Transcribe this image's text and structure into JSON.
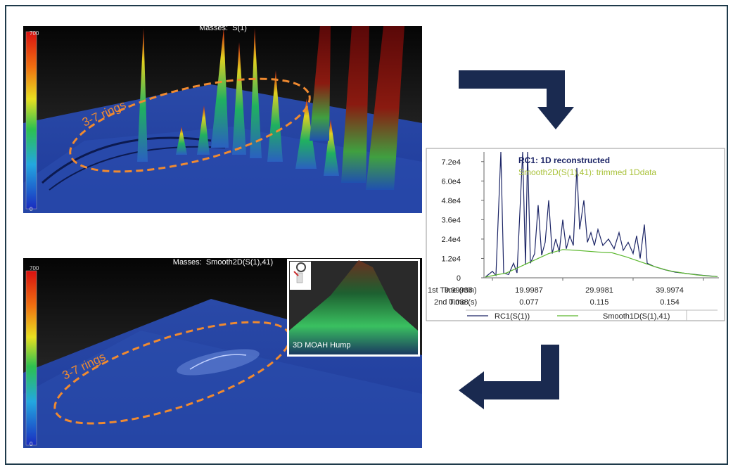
{
  "panels": [
    {
      "title": "Masses:  S(1)",
      "colorbar": {
        "max": 700,
        "min": 0
      },
      "annotation": "3-7 rings"
    },
    {
      "title": "Masses:  Smooth2D(S(1),41)",
      "colorbar": {
        "max": 700,
        "min": 0
      },
      "annotation": "3-7 rings",
      "inset_label": "3D MOAH Hump"
    }
  ],
  "chart_data": {
    "type": "line",
    "annotations": [
      {
        "text": "RC1: 1D reconstructed",
        "color": "#1c2566"
      },
      {
        "text": "Smooth2D(S(1),41): trimmed 1Ddata",
        "color": "#a9c23a"
      }
    ],
    "x_label": "1st Time (min)",
    "x2_label": "2nd Time (s)",
    "xlim": [
      8.8,
      42.2
    ],
    "xticks": [
      9.99936,
      19.9987,
      29.9981,
      39.9974
    ],
    "x2ticks": [
      0.038,
      0.077,
      0.115,
      0.154
    ],
    "ylim": [
      0,
      78000
    ],
    "yticks": [
      0,
      {
        "value": 12000,
        "label": "1.2e4"
      },
      {
        "value": 24000,
        "label": "2.4e4"
      },
      {
        "value": 36000,
        "label": "3.6e4"
      },
      {
        "value": 48000,
        "label": "4.8e4"
      },
      {
        "value": 60000,
        "label": "6.0e4"
      },
      {
        "value": 72000,
        "label": "7.2e4"
      }
    ],
    "series": [
      {
        "name": "RC1(S(1))",
        "color": "#1c2566",
        "x": [
          9.0,
          10.0,
          10.5,
          11.2,
          11.6,
          12.3,
          13.0,
          13.5,
          14.3,
          14.7,
          15.0,
          15.4,
          16.0,
          16.5,
          17.0,
          17.5,
          18.0,
          18.5,
          19.0,
          19.5,
          20.0,
          20.5,
          21.0,
          21.5,
          22.0,
          22.4,
          23.0,
          23.5,
          24.0,
          24.5,
          25.0,
          25.7,
          26.5,
          27.3,
          28.0,
          28.6,
          29.3,
          30.0,
          30.5,
          31.0,
          31.6,
          32.0,
          33.0,
          34.5,
          36.0,
          38.0,
          40.0,
          42.0
        ],
        "values": [
          500,
          4000,
          1500,
          78000,
          3000,
          2000,
          9000,
          3000,
          78000,
          8000,
          78000,
          9000,
          15000,
          45000,
          14000,
          22000,
          48000,
          15000,
          24000,
          16000,
          36000,
          18000,
          26000,
          20000,
          68000,
          30000,
          48000,
          22000,
          28000,
          20000,
          30000,
          20000,
          24000,
          18000,
          28000,
          17000,
          22000,
          15000,
          26000,
          12000,
          33000,
          9000,
          7000,
          5000,
          3500,
          2500,
          1500,
          800
        ]
      },
      {
        "name": "Smooth1D(S(1),41)",
        "color": "#5cb82e",
        "x": [
          9.0,
          12.0,
          15.0,
          18.0,
          20.0,
          22.0,
          25.0,
          27.0,
          29.0,
          31.0,
          33.0,
          35.0,
          37.0,
          39.0,
          41.0,
          42.0
        ],
        "values": [
          500,
          3000,
          9000,
          15000,
          17500,
          17000,
          16000,
          15500,
          13000,
          10000,
          7000,
          4500,
          3000,
          1800,
          1000,
          800
        ]
      }
    ]
  }
}
